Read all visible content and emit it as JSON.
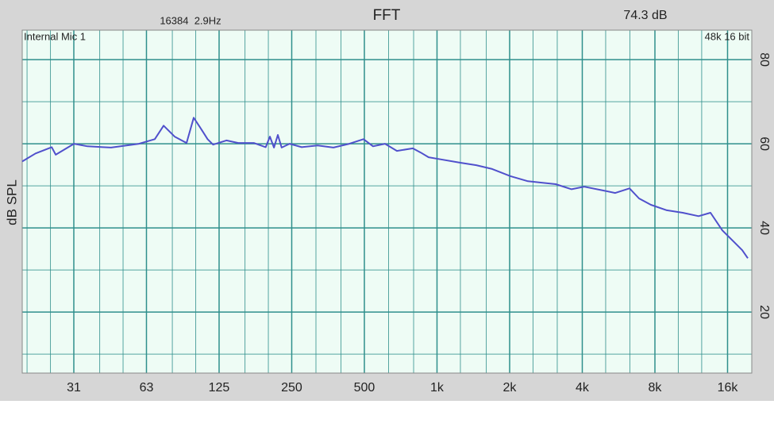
{
  "chart_data": {
    "type": "line",
    "title": "FFT",
    "fft_info": "16384  2.9Hz",
    "level": "74.3 dB",
    "input": "Internal Mic 1",
    "format": "48k 16 bit",
    "ylabel": "dB SPL",
    "xscale": "log",
    "grid": true,
    "xlim": [
      19.1,
      20160
    ],
    "ylim": [
      5.5,
      87
    ],
    "xticks": [
      {
        "value": 31.25,
        "label": "31"
      },
      {
        "value": 62.5,
        "label": "63"
      },
      125,
      250,
      500,
      {
        "value": 1000,
        "label": "1k"
      },
      {
        "value": 2000,
        "label": "2k"
      },
      {
        "value": 4000,
        "label": "4k"
      },
      {
        "value": 8000,
        "label": "8k"
      },
      {
        "value": 16000,
        "label": "16k"
      }
    ],
    "minor_xticks": [
      20,
      25,
      40,
      50,
      80,
      100,
      160,
      200,
      315,
      400,
      630,
      800,
      1250,
      1600,
      2500,
      3150,
      5000,
      6300,
      10000,
      12500
    ],
    "yticks": [
      20,
      40,
      60,
      80
    ],
    "minor_yticks": [
      10,
      30,
      50,
      70
    ],
    "x": [
      19.1,
      21.7,
      25.3,
      26.3,
      31.3,
      35.6,
      44.6,
      58.2,
      67.7,
      73.6,
      81.8,
      91.6,
      98.1,
      104,
      112,
      118,
      134,
      150,
      174,
      195,
      203,
      211,
      219,
      227,
      245,
      275,
      320,
      372,
      433,
      496,
      543,
      609,
      682,
      794,
      856,
      923,
      1011,
      1250,
      1455,
      1693,
      2015,
      2381,
      2667,
      3104,
      3611,
      4075,
      4891,
      5479,
      6276,
      6874,
      7700,
      8963,
      10430,
      12134,
      13594,
      15231,
      17063,
      18406,
      19406
    ],
    "series": [
      {
        "color": "#5050cc",
        "values": [
          55.8,
          57.7,
          59.2,
          57.4,
          60,
          59.4,
          59.1,
          60,
          61.1,
          64.3,
          61.7,
          60.2,
          66.2,
          64,
          61.1,
          59.8,
          60.8,
          60.2,
          60.2,
          59.2,
          61.7,
          59.1,
          62.1,
          59.1,
          60,
          59.2,
          59.6,
          59.1,
          60,
          61.1,
          59.4,
          60,
          58.3,
          58.9,
          57.9,
          56.8,
          56.4,
          55.5,
          54.9,
          54,
          52.3,
          51.1,
          50.8,
          50.4,
          49.2,
          49.8,
          48.9,
          48.3,
          49.4,
          47,
          45.5,
          44.2,
          43.6,
          42.8,
          43.6,
          39.4,
          36.6,
          34.7,
          32.8
        ]
      }
    ],
    "colors": {
      "plot": "#eefcf5",
      "grid": "#2f8f8c",
      "level": "#4a90e2"
    }
  }
}
